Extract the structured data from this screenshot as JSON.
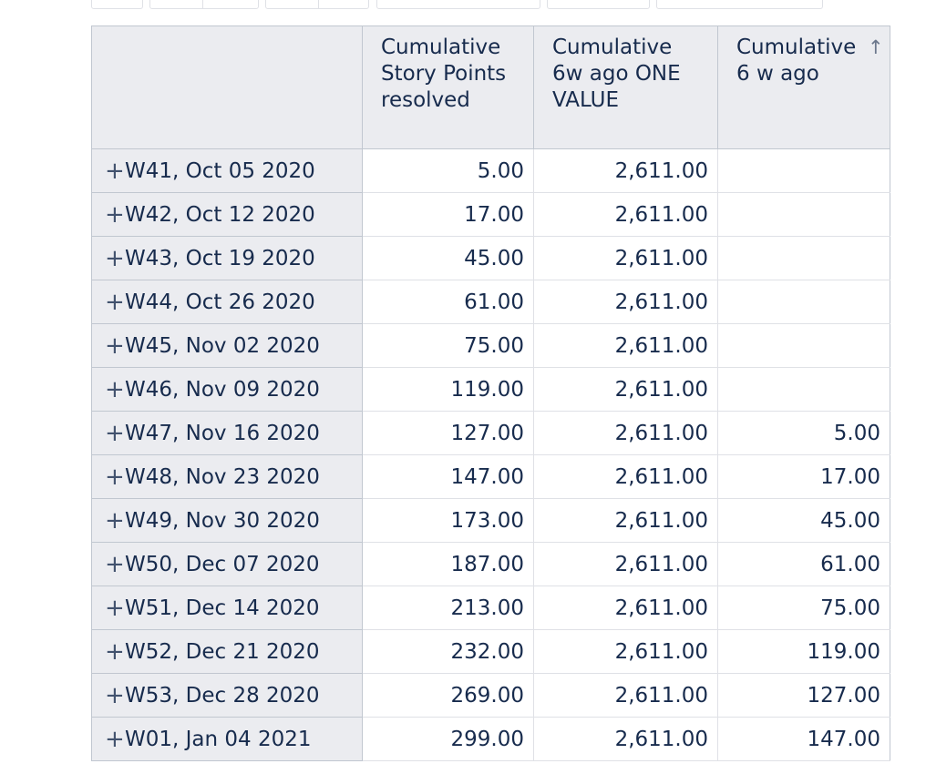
{
  "table": {
    "headers": [
      "",
      "Cumulative Story Points resolved",
      "Cumulative 6w ago ONE VALUE",
      "Cumulative 6 w ago"
    ],
    "sort_icon": "arrow-up-icon",
    "sort_glyph": "↑",
    "expand_glyph": "+",
    "rows": [
      {
        "label": "W41, Oct 05 2020",
        "v1": "5.00",
        "v2": "2,611.00",
        "v3": ""
      },
      {
        "label": "W42, Oct 12 2020",
        "v1": "17.00",
        "v2": "2,611.00",
        "v3": ""
      },
      {
        "label": "W43, Oct 19 2020",
        "v1": "45.00",
        "v2": "2,611.00",
        "v3": ""
      },
      {
        "label": "W44, Oct 26 2020",
        "v1": "61.00",
        "v2": "2,611.00",
        "v3": ""
      },
      {
        "label": "W45, Nov 02 2020",
        "v1": "75.00",
        "v2": "2,611.00",
        "v3": ""
      },
      {
        "label": "W46, Nov 09 2020",
        "v1": "119.00",
        "v2": "2,611.00",
        "v3": ""
      },
      {
        "label": "W47, Nov 16 2020",
        "v1": "127.00",
        "v2": "2,611.00",
        "v3": "5.00"
      },
      {
        "label": "W48, Nov 23 2020",
        "v1": "147.00",
        "v2": "2,611.00",
        "v3": "17.00"
      },
      {
        "label": "W49, Nov 30 2020",
        "v1": "173.00",
        "v2": "2,611.00",
        "v3": "45.00"
      },
      {
        "label": "W50, Dec 07 2020",
        "v1": "187.00",
        "v2": "2,611.00",
        "v3": "61.00"
      },
      {
        "label": "W51, Dec 14 2020",
        "v1": "213.00",
        "v2": "2,611.00",
        "v3": "75.00"
      },
      {
        "label": "W52, Dec 21 2020",
        "v1": "232.00",
        "v2": "2,611.00",
        "v3": "119.00"
      },
      {
        "label": "W53, Dec 28 2020",
        "v1": "269.00",
        "v2": "2,611.00",
        "v3": "127.00"
      },
      {
        "label": "W01, Jan 04 2021",
        "v1": "299.00",
        "v2": "2,611.00",
        "v3": "147.00"
      }
    ]
  },
  "colors": {
    "header_bg": "#ebecf0",
    "text": "#172b4d",
    "border": "#c1c7d0",
    "row_border": "#dfe1e6"
  }
}
